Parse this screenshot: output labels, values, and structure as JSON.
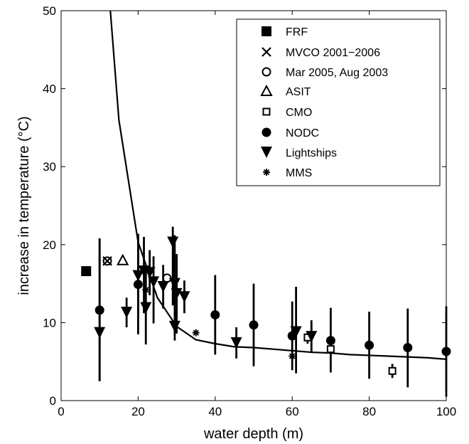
{
  "chart_data": {
    "type": "scatter",
    "xlabel": "water depth (m)",
    "ylabel": "increase in temperature (°C)",
    "xlim": [
      0,
      100
    ],
    "ylim": [
      0,
      50
    ],
    "xticks": [
      "0",
      "20",
      "40",
      "60",
      "80",
      "100"
    ],
    "yticks": [
      "0",
      "10",
      "20",
      "30",
      "40",
      "50"
    ],
    "grid": false,
    "legend_position": "top-right",
    "curve": {
      "type": "line",
      "x": [
        12.5,
        15,
        20,
        25,
        30,
        35,
        40,
        45,
        50,
        55,
        60,
        65,
        70,
        75,
        80,
        85,
        90,
        95,
        100
      ],
      "y": [
        51.8,
        36.0,
        20.3,
        13.2,
        9.5,
        7.8,
        7.3,
        6.9,
        6.8,
        6.6,
        6.4,
        6.2,
        6.1,
        5.9,
        5.8,
        5.7,
        5.6,
        5.5,
        5.3
      ]
    },
    "series": [
      {
        "name": "FRF",
        "marker": "filled-square",
        "points": [
          {
            "x": 6.5,
            "y": 16.6
          }
        ]
      },
      {
        "name": "MVCO 2001−2006",
        "marker": "x",
        "points": [
          {
            "x": 12,
            "y": 17.9
          }
        ]
      },
      {
        "name": "Mar 2005, Aug 2003",
        "marker": "open-circle",
        "points": [
          {
            "x": 12,
            "y": 17.9
          },
          {
            "x": 27.5,
            "y": 15.7
          }
        ]
      },
      {
        "name": "ASIT",
        "marker": "open-triangle",
        "points": [
          {
            "x": 16,
            "y": 18.0
          }
        ]
      },
      {
        "name": "CMO",
        "marker": "open-square",
        "points": [
          {
            "x": 64,
            "y": 8.1,
            "low": 7.3,
            "high": 8.9
          },
          {
            "x": 70,
            "y": 6.6,
            "low": 6.0,
            "high": 7.3
          },
          {
            "x": 86,
            "y": 3.8,
            "low": 2.9,
            "high": 4.7
          }
        ]
      },
      {
        "name": "NODC",
        "marker": "filled-circle",
        "points": [
          {
            "x": 10,
            "y": 11.6,
            "low": 2.5,
            "high": 20.8
          },
          {
            "x": 20,
            "y": 14.9,
            "low": 8.5,
            "high": 21.3
          },
          {
            "x": 40,
            "y": 11.0,
            "low": 5.9,
            "high": 16.1
          },
          {
            "x": 50,
            "y": 9.7,
            "low": 4.4,
            "high": 15.0
          },
          {
            "x": 60,
            "y": 8.3,
            "low": 3.9,
            "high": 12.7
          },
          {
            "x": 70,
            "y": 7.7,
            "low": 3.6,
            "high": 11.9
          },
          {
            "x": 80,
            "y": 7.1,
            "low": 2.8,
            "high": 11.4
          },
          {
            "x": 90,
            "y": 6.8,
            "low": 1.7,
            "high": 11.8
          },
          {
            "x": 100,
            "y": 6.3,
            "low": 0.5,
            "high": 12.1
          }
        ]
      },
      {
        "name": "Lightships",
        "marker": "filled-triangle-down",
        "points": [
          {
            "x": 10,
            "y": 8.7,
            "low": 2.5,
            "high": 20.8
          },
          {
            "x": 17,
            "y": 11.3,
            "low": 9.4,
            "high": 13.2
          },
          {
            "x": 20,
            "y": 16.0,
            "low": 10.6,
            "high": 21.4
          },
          {
            "x": 21.5,
            "y": 16.6,
            "low": 11.2,
            "high": 21.0
          },
          {
            "x": 22,
            "y": 11.9,
            "low": 7.2,
            "high": 16.6
          },
          {
            "x": 23,
            "y": 16.4,
            "low": 13.5,
            "high": 19.3
          },
          {
            "x": 24,
            "y": 15.2,
            "low": 9.9,
            "high": 18.5
          },
          {
            "x": 26.5,
            "y": 14.6,
            "low": 11.8,
            "high": 17.4
          },
          {
            "x": 29,
            "y": 20.3,
            "low": 12.2,
            "high": 22.3
          },
          {
            "x": 29.5,
            "y": 15.0,
            "low": 8.8,
            "high": 21.2
          },
          {
            "x": 29.5,
            "y": 9.5,
            "low": 7.7,
            "high": 11.4
          },
          {
            "x": 30,
            "y": 13.7,
            "low": 8.6,
            "high": 18.8
          },
          {
            "x": 32,
            "y": 13.3,
            "low": 11.2,
            "high": 15.4
          },
          {
            "x": 45.5,
            "y": 7.4,
            "low": 5.4,
            "high": 9.4
          },
          {
            "x": 61,
            "y": 8.8,
            "low": 3.5,
            "high": 14.6
          },
          {
            "x": 65,
            "y": 8.2,
            "low": 6.1,
            "high": 10.3
          }
        ]
      },
      {
        "name": "MMS",
        "marker": "asterisk",
        "points": [
          {
            "x": 22,
            "y": 14.2
          },
          {
            "x": 35,
            "y": 8.7
          },
          {
            "x": 60,
            "y": 5.7
          }
        ]
      }
    ]
  }
}
